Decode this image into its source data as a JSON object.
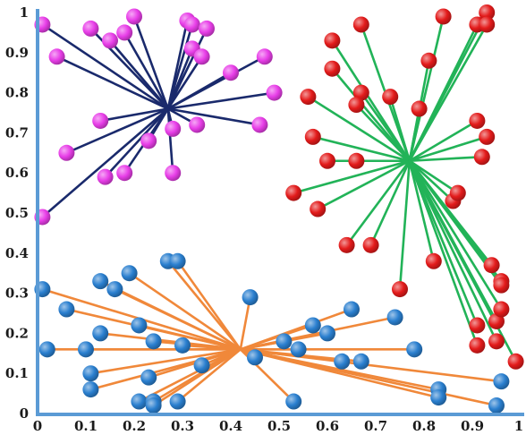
{
  "chart_data": {
    "type": "scatter",
    "title": "",
    "xlabel": "",
    "ylabel": "",
    "xlim": [
      0,
      1
    ],
    "ylim": [
      0,
      1
    ],
    "x_ticks": [
      "0",
      "0.1",
      "0.2",
      "0.3",
      "0.4",
      "0.5",
      "0.6",
      "0.7",
      "0.8",
      "0.9",
      "1"
    ],
    "y_ticks": [
      "0",
      "0.1",
      "0.2",
      "0.3",
      "0.4",
      "0.5",
      "0.6",
      "0.7",
      "0.8",
      "0.9",
      "1"
    ],
    "axis_color": "#5b9bd5",
    "clusters": [
      {
        "center": [
          0.27,
          0.76
        ],
        "point_color": "#e83ee8",
        "line_color": "#1a2a6c",
        "points": [
          [
            0.01,
            0.97
          ],
          [
            0.04,
            0.89
          ],
          [
            0.11,
            0.96
          ],
          [
            0.15,
            0.93
          ],
          [
            0.18,
            0.95
          ],
          [
            0.2,
            0.99
          ],
          [
            0.31,
            0.98
          ],
          [
            0.32,
            0.97
          ],
          [
            0.35,
            0.96
          ],
          [
            0.32,
            0.91
          ],
          [
            0.34,
            0.89
          ],
          [
            0.4,
            0.85
          ],
          [
            0.47,
            0.89
          ],
          [
            0.49,
            0.8
          ],
          [
            0.46,
            0.72
          ],
          [
            0.33,
            0.72
          ],
          [
            0.28,
            0.71
          ],
          [
            0.23,
            0.68
          ],
          [
            0.13,
            0.73
          ],
          [
            0.06,
            0.65
          ],
          [
            0.14,
            0.59
          ],
          [
            0.18,
            0.6
          ],
          [
            0.28,
            0.6
          ],
          [
            0.01,
            0.49
          ]
        ]
      },
      {
        "center": [
          0.77,
          0.63
        ],
        "point_color": "#e31b1b",
        "line_color": "#22b358",
        "points": [
          [
            0.61,
            0.93
          ],
          [
            0.67,
            0.97
          ],
          [
            0.84,
            0.99
          ],
          [
            0.81,
            0.88
          ],
          [
            0.61,
            0.86
          ],
          [
            0.67,
            0.8
          ],
          [
            0.66,
            0.77
          ],
          [
            0.73,
            0.79
          ],
          [
            0.79,
            0.76
          ],
          [
            0.56,
            0.79
          ],
          [
            0.57,
            0.69
          ],
          [
            0.6,
            0.63
          ],
          [
            0.66,
            0.63
          ],
          [
            0.53,
            0.55
          ],
          [
            0.58,
            0.51
          ],
          [
            0.64,
            0.42
          ],
          [
            0.69,
            0.42
          ],
          [
            0.75,
            0.31
          ],
          [
            0.82,
            0.38
          ],
          [
            0.86,
            0.53
          ],
          [
            0.87,
            0.55
          ],
          [
            0.91,
            0.97
          ],
          [
            0.93,
            1.0
          ],
          [
            0.93,
            0.97
          ],
          [
            0.91,
            0.73
          ],
          [
            0.93,
            0.69
          ],
          [
            0.92,
            0.64
          ],
          [
            0.94,
            0.37
          ],
          [
            0.96,
            0.33
          ],
          [
            0.96,
            0.32
          ],
          [
            0.91,
            0.22
          ],
          [
            0.95,
            0.23
          ],
          [
            0.96,
            0.26
          ],
          [
            0.91,
            0.17
          ],
          [
            0.95,
            0.18
          ],
          [
            0.99,
            0.13
          ]
        ]
      },
      {
        "center": [
          0.42,
          0.16
        ],
        "point_color": "#2a7fcf",
        "line_color": "#f0883a",
        "points": [
          [
            0.01,
            0.31
          ],
          [
            0.06,
            0.26
          ],
          [
            0.13,
            0.33
          ],
          [
            0.16,
            0.31
          ],
          [
            0.19,
            0.35
          ],
          [
            0.27,
            0.38
          ],
          [
            0.29,
            0.38
          ],
          [
            0.02,
            0.16
          ],
          [
            0.1,
            0.16
          ],
          [
            0.13,
            0.2
          ],
          [
            0.21,
            0.22
          ],
          [
            0.24,
            0.18
          ],
          [
            0.3,
            0.17
          ],
          [
            0.11,
            0.1
          ],
          [
            0.11,
            0.06
          ],
          [
            0.23,
            0.09
          ],
          [
            0.21,
            0.03
          ],
          [
            0.24,
            0.03
          ],
          [
            0.24,
            0.02
          ],
          [
            0.29,
            0.03
          ],
          [
            0.34,
            0.12
          ],
          [
            0.44,
            0.29
          ],
          [
            0.45,
            0.14
          ],
          [
            0.51,
            0.18
          ],
          [
            0.54,
            0.16
          ],
          [
            0.57,
            0.22
          ],
          [
            0.6,
            0.2
          ],
          [
            0.65,
            0.26
          ],
          [
            0.74,
            0.24
          ],
          [
            0.63,
            0.13
          ],
          [
            0.67,
            0.13
          ],
          [
            0.78,
            0.16
          ],
          [
            0.53,
            0.03
          ],
          [
            0.83,
            0.06
          ],
          [
            0.83,
            0.04
          ],
          [
            0.95,
            0.02
          ],
          [
            0.96,
            0.08
          ]
        ]
      }
    ]
  }
}
